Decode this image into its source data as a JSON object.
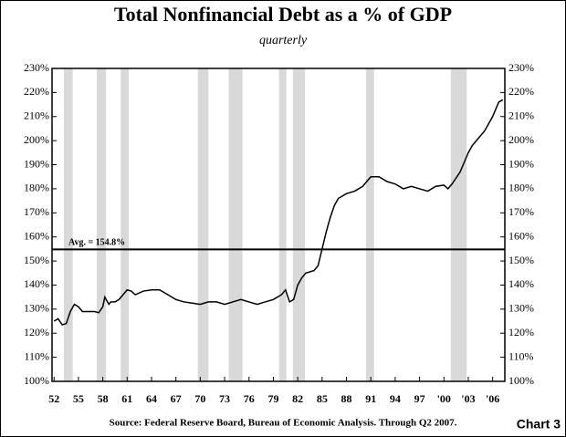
{
  "chart_data": {
    "type": "line",
    "title": "Total Nonfinancial Debt as a % of GDP",
    "subtitle": "quarterly",
    "source": "Source:  Federal Reserve Board, Bureau of Economic Analysis.  Through Q2 2007.",
    "chart_label": "Chart 3",
    "xlim": [
      1951.75,
      2007.5
    ],
    "ylim": [
      100,
      230
    ],
    "xticks": [
      {
        "value": 1952,
        "label": "52"
      },
      {
        "value": 1955,
        "label": "55"
      },
      {
        "value": 1958,
        "label": "58"
      },
      {
        "value": 1961,
        "label": "61"
      },
      {
        "value": 1964,
        "label": "64"
      },
      {
        "value": 1967,
        "label": "67"
      },
      {
        "value": 1970,
        "label": "70"
      },
      {
        "value": 1973,
        "label": "73"
      },
      {
        "value": 1976,
        "label": "76"
      },
      {
        "value": 1979,
        "label": "79"
      },
      {
        "value": 1982,
        "label": "82"
      },
      {
        "value": 1985,
        "label": "85"
      },
      {
        "value": 1988,
        "label": "88"
      },
      {
        "value": 1991,
        "label": "91"
      },
      {
        "value": 1994,
        "label": "94"
      },
      {
        "value": 1997,
        "label": "97"
      },
      {
        "value": 2000,
        "label": "'00"
      },
      {
        "value": 2003,
        "label": "'03"
      },
      {
        "value": 2006,
        "label": "'06"
      }
    ],
    "yticks": [
      {
        "value": 100,
        "label": "100%"
      },
      {
        "value": 110,
        "label": "110%"
      },
      {
        "value": 120,
        "label": "120%"
      },
      {
        "value": 130,
        "label": "130%"
      },
      {
        "value": 140,
        "label": "140%"
      },
      {
        "value": 150,
        "label": "150%"
      },
      {
        "value": 160,
        "label": "160%"
      },
      {
        "value": 170,
        "label": "170%"
      },
      {
        "value": 180,
        "label": "180%"
      },
      {
        "value": 190,
        "label": "190%"
      },
      {
        "value": 200,
        "label": "200%"
      },
      {
        "value": 210,
        "label": "210%"
      },
      {
        "value": 220,
        "label": "220%"
      },
      {
        "value": 230,
        "label": "230%"
      }
    ],
    "recessions": [
      [
        1953.2,
        1954.3
      ],
      [
        1957.25,
        1958.4
      ],
      [
        1960.2,
        1961.2
      ],
      [
        1969.7,
        1971
      ],
      [
        1973.5,
        1975.2
      ],
      [
        1979.7,
        1980.6
      ],
      [
        1981.4,
        1982.9
      ],
      [
        1990.4,
        1991.4
      ],
      [
        2000.85,
        2002.8
      ]
    ],
    "recession_color": "#d9d9d9",
    "average": {
      "value": 154.8,
      "label": "Avg. = 154.8%"
    },
    "color": "#000000",
    "x": [
      1952,
      1952.5,
      1953,
      1953.5,
      1954,
      1954.5,
      1955,
      1955.5,
      1956,
      1957,
      1957.5,
      1958,
      1958.25,
      1958.75,
      1959,
      1959.5,
      1960,
      1960.5,
      1961,
      1961.5,
      1962,
      1963,
      1964,
      1965,
      1966,
      1967,
      1968,
      1969,
      1970,
      1971,
      1972,
      1973,
      1974,
      1975,
      1976,
      1977,
      1978,
      1979,
      1980,
      1980.5,
      1981,
      1981.5,
      1982,
      1982.5,
      1983,
      1984,
      1984.5,
      1985,
      1985.5,
      1986,
      1986.5,
      1987,
      1988,
      1989,
      1990,
      1990.5,
      1991,
      1992,
      1993,
      1994,
      1995,
      1996,
      1997,
      1998,
      1999,
      2000,
      2000.5,
      2001,
      2002,
      2003,
      2003.5,
      2004,
      2005,
      2006,
      2006.75,
      2007.25
    ],
    "values": [
      125,
      126,
      123.5,
      124,
      129,
      132,
      131,
      129,
      129,
      129,
      128.5,
      131,
      135,
      132,
      133,
      133,
      134,
      136,
      138,
      137.5,
      136,
      137.5,
      138,
      138,
      136,
      134,
      133,
      132.5,
      132,
      133,
      133,
      132,
      133,
      134,
      133,
      132,
      133,
      134,
      136,
      138,
      133,
      134,
      140,
      143,
      145,
      146,
      148,
      155,
      162,
      168,
      173,
      176,
      178,
      179,
      181,
      183,
      185,
      185,
      183,
      182,
      180,
      181,
      180,
      179,
      181,
      181.5,
      180,
      182,
      187,
      195,
      198,
      200,
      204,
      210,
      216,
      217
    ]
  }
}
